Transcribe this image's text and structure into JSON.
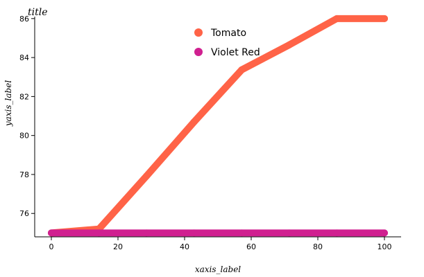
{
  "chart_data": {
    "type": "scatter",
    "title": "title",
    "xlabel": "xaxis_label",
    "ylabel": "yaxis_label",
    "xlim": [
      -5,
      105
    ],
    "ylim": [
      74.8,
      86.1
    ],
    "xticks": [
      0,
      20,
      40,
      60,
      80,
      100
    ],
    "yticks": [
      76,
      78,
      80,
      82,
      84,
      86
    ],
    "grid": false,
    "legend_position": "top",
    "series": [
      {
        "name": "Tomato",
        "color": "#ff6347",
        "x": [
          0,
          14.29,
          28.57,
          42.86,
          57.14,
          71.43,
          85.71,
          100
        ],
        "y": [
          75,
          75.2,
          77.92,
          80.7,
          83.37,
          84.65,
          86,
          86
        ]
      },
      {
        "name": "Violet Red",
        "color": "#d02090",
        "x": [
          0,
          14.29,
          28.57,
          42.86,
          57.14,
          71.43,
          85.71,
          100
        ],
        "y": [
          75,
          75,
          75,
          75,
          75,
          75,
          75,
          75
        ]
      }
    ]
  }
}
